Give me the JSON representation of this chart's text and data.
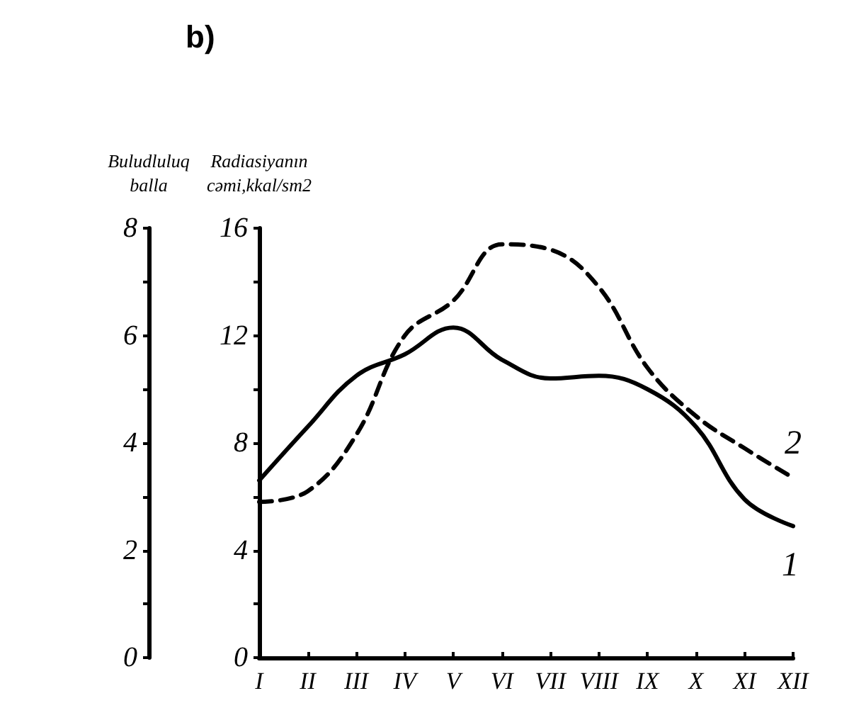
{
  "chart_data": {
    "type": "line",
    "title": "b)",
    "ylabel": "Radiasiyanın\ncəmi,kkal/sm2",
    "y2label": "Buludluluq\nballa",
    "categories": [
      "I",
      "II",
      "III",
      "IV",
      "V",
      "VI",
      "VII",
      "VIII",
      "IX",
      "X",
      "XI",
      "XII"
    ],
    "ylim": [
      0,
      16
    ],
    "yticks": [
      0,
      {
        "value": 2,
        "label": null
      },
      4,
      {
        "value": 6,
        "label": null
      },
      8,
      {
        "value": 10,
        "label": null
      },
      12,
      {
        "value": 14,
        "label": null
      },
      16
    ],
    "y2lim": [
      0,
      8
    ],
    "y2ticks": [
      0,
      {
        "value": 1,
        "label": null
      },
      2,
      {
        "value": 3,
        "label": null
      },
      4,
      {
        "value": 5,
        "label": null
      },
      6,
      {
        "value": 7,
        "label": null
      },
      8
    ],
    "grid": false,
    "legend": false,
    "marker": "none",
    "series": [
      {
        "name": "1",
        "color": "#000000",
        "line_style": "solid",
        "values": [
          6.6,
          8.6,
          10.5,
          11.3,
          12.3,
          11.1,
          10.4,
          10.5,
          10.0,
          8.6,
          5.9,
          4.9
        ]
      },
      {
        "name": "2",
        "color": "#000000",
        "line_style": "dashed",
        "values": [
          5.8,
          6.2,
          8.3,
          12.0,
          13.3,
          15.4,
          15.2,
          13.8,
          10.8,
          9.0,
          7.8,
          6.7
        ]
      }
    ]
  }
}
